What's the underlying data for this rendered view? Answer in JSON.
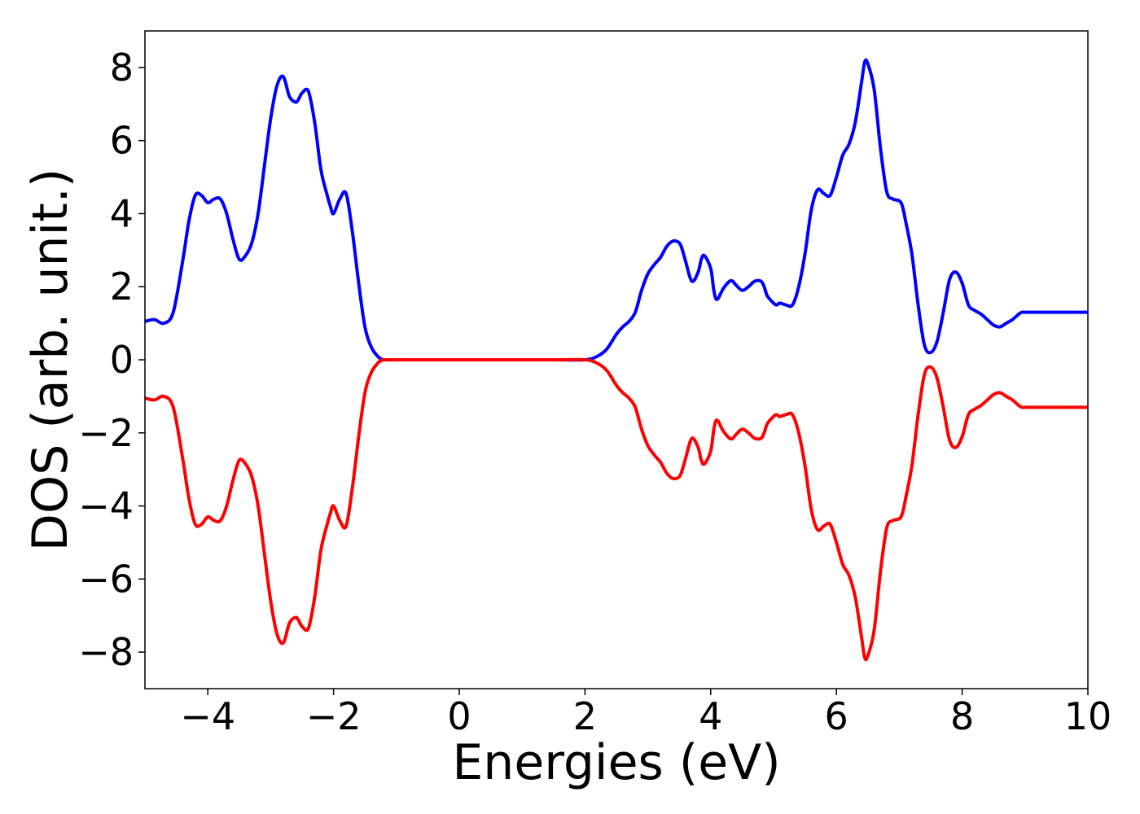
{
  "chart_data": {
    "type": "line",
    "title": "",
    "xlabel": "Energies (eV)",
    "ylabel": "DOS (arb. unit.)",
    "xlim": [
      -5,
      10
    ],
    "ylim": [
      -9,
      9
    ],
    "x_ticks": [
      -4,
      -2,
      0,
      2,
      4,
      6,
      8,
      10
    ],
    "y_ticks": [
      -8,
      -6,
      -4,
      -2,
      0,
      2,
      4,
      6,
      8
    ],
    "x_tick_labels": [
      "−4",
      "−2",
      "0",
      "2",
      "4",
      "6",
      "8",
      "10"
    ],
    "y_tick_labels": [
      "−8",
      "−6",
      "−4",
      "−2",
      "0",
      "2",
      "4",
      "6",
      "8"
    ],
    "grid": false,
    "legend": "none",
    "series": [
      {
        "color": "#0000ff",
        "x": [
          -5.0,
          -4.85,
          -4.7,
          -4.55,
          -4.4,
          -4.3,
          -4.2,
          -4.1,
          -4.0,
          -3.9,
          -3.8,
          -3.7,
          -3.6,
          -3.5,
          -3.4,
          -3.3,
          -3.2,
          -3.1,
          -3.0,
          -2.9,
          -2.8,
          -2.7,
          -2.6,
          -2.55,
          -2.5,
          -2.4,
          -2.3,
          -2.2,
          -2.1,
          -2.05,
          -2.0,
          -1.9,
          -1.8,
          -1.7,
          -1.6,
          -1.5,
          -1.4,
          -1.3,
          -1.25,
          -1.2,
          -1.1,
          -1.0,
          -0.9,
          -0.8,
          -0.7,
          -0.6,
          -0.5,
          -0.3,
          0.0,
          0.5,
          1.0,
          1.5,
          2.0,
          2.2,
          2.35,
          2.5,
          2.6,
          2.7,
          2.8,
          2.9,
          3.0,
          3.1,
          3.2,
          3.3,
          3.4,
          3.5,
          3.55,
          3.6,
          3.7,
          3.8,
          3.85,
          3.9,
          4.0,
          4.05,
          4.1,
          4.2,
          4.3,
          4.35,
          4.4,
          4.5,
          4.6,
          4.7,
          4.8,
          4.85,
          4.9,
          5.0,
          5.05,
          5.1,
          5.2,
          5.3,
          5.4,
          5.5,
          5.6,
          5.7,
          5.8,
          5.9,
          6.0,
          6.1,
          6.2,
          6.3,
          6.4,
          6.45,
          6.5,
          6.6,
          6.7,
          6.8,
          6.9,
          7.0,
          7.05,
          7.1,
          7.2,
          7.3,
          7.4,
          7.5,
          7.6,
          7.7,
          7.8,
          7.9,
          8.0,
          8.1,
          8.2,
          8.3,
          8.4,
          8.5,
          8.6,
          8.7,
          8.8,
          8.9,
          8.95,
          9.0,
          9.1,
          9.2,
          9.3,
          9.4,
          9.5,
          9.6,
          9.7,
          9.8,
          9.9,
          10.0
        ],
        "y": [
          1.05,
          1.1,
          1.0,
          1.3,
          2.7,
          3.8,
          4.5,
          4.5,
          4.3,
          4.4,
          4.4,
          4.0,
          3.3,
          2.75,
          2.85,
          3.2,
          4.0,
          5.3,
          6.6,
          7.5,
          7.75,
          7.2,
          7.05,
          7.15,
          7.3,
          7.35,
          6.5,
          5.2,
          4.5,
          4.2,
          4.0,
          4.4,
          4.55,
          3.5,
          2.1,
          0.9,
          0.35,
          0.1,
          0.03,
          0.0,
          0.0,
          0.0,
          0.0,
          0.0,
          0.0,
          0.0,
          0.0,
          0.0,
          0.0,
          0.0,
          0.0,
          0.0,
          0.0,
          0.1,
          0.3,
          0.7,
          0.9,
          1.05,
          1.3,
          1.9,
          2.35,
          2.6,
          2.8,
          3.1,
          3.25,
          3.2,
          3.0,
          2.7,
          2.15,
          2.4,
          2.75,
          2.85,
          2.5,
          1.9,
          1.65,
          1.95,
          2.15,
          2.15,
          2.05,
          1.9,
          2.0,
          2.15,
          2.15,
          2.0,
          1.75,
          1.55,
          1.5,
          1.55,
          1.5,
          1.5,
          2.0,
          2.9,
          4.1,
          4.65,
          4.55,
          4.5,
          5.0,
          5.6,
          5.9,
          6.5,
          7.6,
          8.15,
          8.1,
          7.4,
          5.8,
          4.6,
          4.4,
          4.35,
          4.2,
          3.8,
          2.9,
          1.5,
          0.4,
          0.2,
          0.5,
          1.3,
          2.2,
          2.4,
          2.1,
          1.5,
          1.35,
          1.25,
          1.1,
          0.95,
          0.9,
          1.0,
          1.1,
          1.25,
          1.3,
          1.3,
          1.3,
          1.3,
          1.3,
          1.3,
          1.3,
          1.3,
          1.3,
          1.3,
          1.3,
          1.3
        ]
      },
      {
        "color": "#ff0000",
        "x": [
          -5.0,
          -4.85,
          -4.7,
          -4.55,
          -4.4,
          -4.3,
          -4.2,
          -4.1,
          -4.0,
          -3.9,
          -3.8,
          -3.7,
          -3.6,
          -3.5,
          -3.4,
          -3.3,
          -3.2,
          -3.1,
          -3.0,
          -2.9,
          -2.8,
          -2.7,
          -2.6,
          -2.55,
          -2.5,
          -2.4,
          -2.3,
          -2.2,
          -2.1,
          -2.05,
          -2.0,
          -1.9,
          -1.8,
          -1.7,
          -1.6,
          -1.5,
          -1.4,
          -1.3,
          -1.25,
          -1.2,
          -1.1,
          -1.0,
          -0.9,
          -0.8,
          -0.7,
          -0.6,
          -0.5,
          -0.3,
          0.0,
          0.5,
          1.0,
          1.5,
          2.0,
          2.2,
          2.35,
          2.5,
          2.6,
          2.7,
          2.8,
          2.9,
          3.0,
          3.1,
          3.2,
          3.3,
          3.4,
          3.5,
          3.55,
          3.6,
          3.7,
          3.8,
          3.85,
          3.9,
          4.0,
          4.05,
          4.1,
          4.2,
          4.3,
          4.35,
          4.4,
          4.5,
          4.6,
          4.7,
          4.8,
          4.85,
          4.9,
          5.0,
          5.05,
          5.1,
          5.2,
          5.3,
          5.4,
          5.5,
          5.6,
          5.7,
          5.8,
          5.9,
          6.0,
          6.1,
          6.2,
          6.3,
          6.4,
          6.45,
          6.5,
          6.6,
          6.7,
          6.8,
          6.9,
          7.0,
          7.05,
          7.1,
          7.2,
          7.3,
          7.4,
          7.5,
          7.6,
          7.7,
          7.8,
          7.9,
          8.0,
          8.1,
          8.2,
          8.3,
          8.4,
          8.5,
          8.6,
          8.7,
          8.8,
          8.9,
          8.95,
          9.0,
          9.1,
          9.2,
          9.3,
          9.4,
          9.5,
          9.6,
          9.7,
          9.8,
          9.9,
          10.0
        ],
        "y": [
          -1.05,
          -1.1,
          -1.0,
          -1.3,
          -2.7,
          -3.8,
          -4.5,
          -4.5,
          -4.3,
          -4.4,
          -4.4,
          -4.0,
          -3.3,
          -2.75,
          -2.85,
          -3.2,
          -4.0,
          -5.3,
          -6.6,
          -7.5,
          -7.75,
          -7.2,
          -7.05,
          -7.15,
          -7.3,
          -7.35,
          -6.5,
          -5.2,
          -4.5,
          -4.2,
          -4.0,
          -4.4,
          -4.55,
          -3.5,
          -2.1,
          -0.9,
          -0.35,
          -0.1,
          -0.03,
          0.0,
          0.0,
          0.0,
          0.0,
          0.0,
          0.0,
          0.0,
          0.0,
          0.0,
          0.0,
          0.0,
          0.0,
          0.0,
          0.0,
          -0.1,
          -0.3,
          -0.7,
          -0.9,
          -1.05,
          -1.3,
          -1.9,
          -2.35,
          -2.6,
          -2.8,
          -3.1,
          -3.25,
          -3.2,
          -3.0,
          -2.7,
          -2.15,
          -2.4,
          -2.75,
          -2.85,
          -2.5,
          -1.9,
          -1.65,
          -1.95,
          -2.15,
          -2.15,
          -2.05,
          -1.9,
          -2.0,
          -2.15,
          -2.15,
          -2.0,
          -1.75,
          -1.55,
          -1.5,
          -1.55,
          -1.5,
          -1.5,
          -2.0,
          -2.9,
          -4.1,
          -4.65,
          -4.55,
          -4.5,
          -5.0,
          -5.6,
          -5.9,
          -6.5,
          -7.6,
          -8.15,
          -8.1,
          -7.4,
          -5.8,
          -4.6,
          -4.4,
          -4.35,
          -4.2,
          -3.8,
          -2.9,
          -1.5,
          -0.4,
          -0.2,
          -0.5,
          -1.3,
          -2.2,
          -2.4,
          -2.1,
          -1.5,
          -1.35,
          -1.25,
          -1.1,
          -0.95,
          -0.9,
          -1.0,
          -1.1,
          -1.25,
          -1.3,
          -1.3,
          -1.3,
          -1.3,
          -1.3,
          -1.3,
          -1.3,
          -1.3,
          -1.3,
          -1.3,
          -1.3,
          -1.3
        ]
      }
    ]
  }
}
